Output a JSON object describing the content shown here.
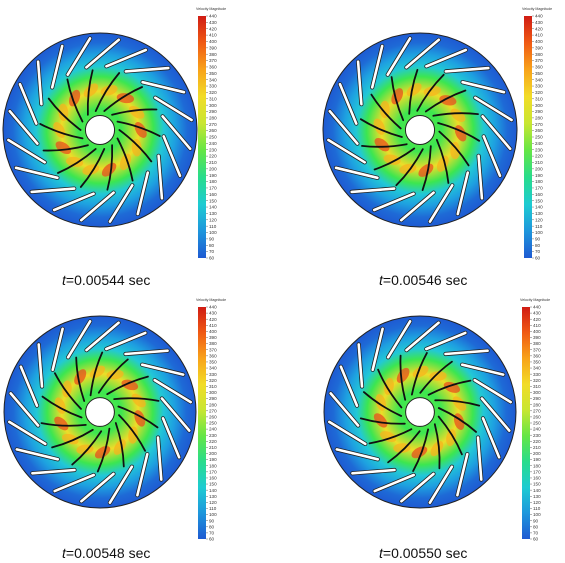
{
  "figure": {
    "panels": [
      {
        "time_var": "t",
        "time_text": "=0.00544 sec"
      },
      {
        "time_var": "t",
        "time_text": "=0.00546 sec"
      },
      {
        "time_var": "t",
        "time_text": "=0.00548 sec"
      },
      {
        "time_var": "t",
        "time_text": "=0.00550 sec"
      }
    ]
  },
  "legend": {
    "title": "Velocity Magnitude",
    "ticks": [
      "440",
      "430",
      "420",
      "410",
      "400",
      "390",
      "380",
      "370",
      "360",
      "350",
      "340",
      "330",
      "320",
      "310",
      "300",
      "290",
      "280",
      "270",
      "260",
      "250",
      "240",
      "230",
      "220",
      "210",
      "200",
      "190",
      "180",
      "170",
      "160",
      "150",
      "140",
      "130",
      "120",
      "110",
      "100",
      "90",
      "80",
      "70",
      "60"
    ],
    "colors": [
      "#d01c14",
      "#f05a14",
      "#f8a31a",
      "#f2dc28",
      "#c8e632",
      "#64e646",
      "#28dc8c",
      "#1ecbd2",
      "#1e96dc",
      "#1e5ad2"
    ]
  },
  "flow": {
    "outer_color": "#1e6ad6",
    "mid_color": "#22c8d6",
    "inner_color": "#3ce650",
    "hot_color": "#f0dc28",
    "peak_color": "#e8501e",
    "outer_vanes": 20,
    "inner_blades": 14
  }
}
